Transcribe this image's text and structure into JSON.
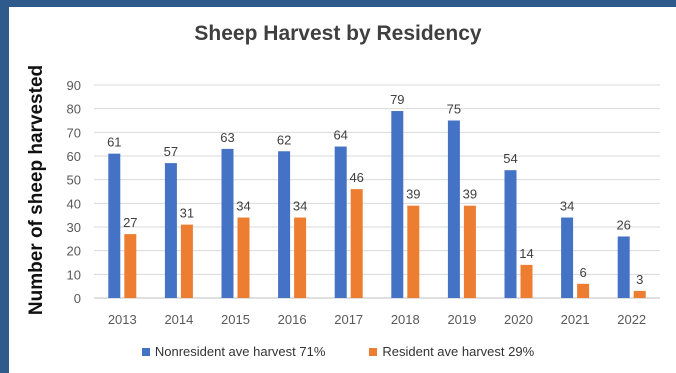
{
  "chart_data": {
    "type": "bar",
    "title": "Sheep Harvest by Residency",
    "xlabel": "",
    "ylabel": "Number of sheep harvested",
    "ylim": [
      0,
      90
    ],
    "yticks": [
      0,
      10,
      20,
      30,
      40,
      50,
      60,
      70,
      80,
      90
    ],
    "categories": [
      "2013",
      "2014",
      "2015",
      "2016",
      "2017",
      "2018",
      "2019",
      "2020",
      "2021",
      "2022"
    ],
    "series": [
      {
        "name": "Nonresident ave harvest 71%",
        "color": "#4472c4",
        "values": [
          61,
          57,
          63,
          62,
          64,
          79,
          75,
          54,
          34,
          26
        ]
      },
      {
        "name": "Resident ave harvest 29%",
        "color": "#ed7d31",
        "values": [
          27,
          31,
          34,
          34,
          46,
          39,
          39,
          14,
          6,
          3
        ]
      }
    ],
    "grid": true,
    "legend_position": "bottom",
    "data_labels": true
  }
}
